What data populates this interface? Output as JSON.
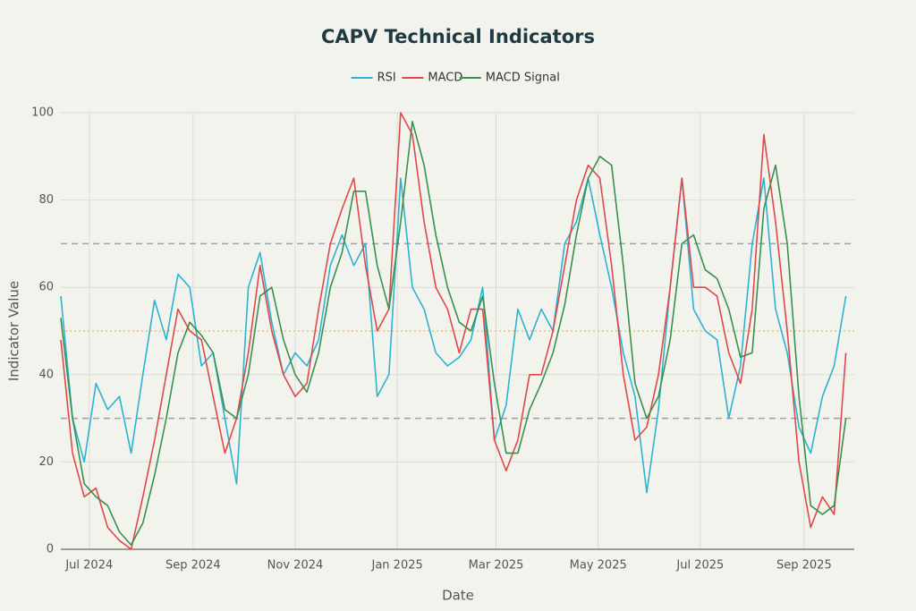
{
  "chart_data": {
    "type": "line",
    "title": "CAPV Technical Indicators",
    "xlabel": "Date",
    "ylabel": "Indicator Value",
    "x": [
      "2024-06-14",
      "2024-06-21",
      "2024-06-28",
      "2024-07-05",
      "2024-07-12",
      "2024-07-19",
      "2024-07-26",
      "2024-08-02",
      "2024-08-09",
      "2024-08-16",
      "2024-08-23",
      "2024-08-30",
      "2024-09-06",
      "2024-09-13",
      "2024-09-20",
      "2024-09-27",
      "2024-10-04",
      "2024-10-11",
      "2024-10-18",
      "2024-10-25",
      "2024-11-01",
      "2024-11-08",
      "2024-11-15",
      "2024-11-22",
      "2024-11-29",
      "2024-12-06",
      "2024-12-13",
      "2024-12-20",
      "2024-12-27",
      "2025-01-03",
      "2025-01-10",
      "2025-01-17",
      "2025-01-24",
      "2025-01-31",
      "2025-02-07",
      "2025-02-14",
      "2025-02-21",
      "2025-02-28",
      "2025-03-07",
      "2025-03-14",
      "2025-03-21",
      "2025-03-28",
      "2025-04-04",
      "2025-04-11",
      "2025-04-18",
      "2025-04-25",
      "2025-05-02",
      "2025-05-09",
      "2025-05-16",
      "2025-05-23",
      "2025-05-30",
      "2025-06-06",
      "2025-06-13",
      "2025-06-20",
      "2025-06-27",
      "2025-07-04",
      "2025-07-11",
      "2025-07-18",
      "2025-07-25",
      "2025-08-01",
      "2025-08-08",
      "2025-08-15",
      "2025-08-22",
      "2025-08-29",
      "2025-09-05",
      "2025-09-12",
      "2025-09-19",
      "2025-09-26"
    ],
    "series": [
      {
        "name": "RSI",
        "color": "#2bb3d1",
        "values": [
          58,
          30,
          20,
          38,
          32,
          35,
          22,
          40,
          57,
          48,
          63,
          60,
          42,
          45,
          30,
          15,
          60,
          68,
          52,
          40,
          45,
          42,
          48,
          65,
          72,
          65,
          70,
          35,
          40,
          85,
          60,
          55,
          45,
          42,
          44,
          48,
          60,
          25,
          33,
          55,
          48,
          55,
          50,
          70,
          75,
          85,
          72,
          60,
          45,
          35,
          13,
          32,
          60,
          85,
          55,
          50,
          48,
          30,
          42,
          70,
          85,
          55,
          45,
          28,
          22,
          35,
          42,
          58
        ]
      },
      {
        "name": "MACD",
        "color": "#e04848",
        "values": [
          48,
          22,
          12,
          14,
          5,
          2,
          0,
          12,
          25,
          40,
          55,
          50,
          48,
          35,
          22,
          30,
          45,
          65,
          50,
          40,
          35,
          38,
          55,
          70,
          78,
          85,
          65,
          50,
          55,
          100,
          95,
          75,
          60,
          55,
          45,
          55,
          55,
          25,
          18,
          25,
          40,
          40,
          50,
          65,
          80,
          88,
          85,
          65,
          40,
          25,
          28,
          40,
          60,
          85,
          60,
          60,
          58,
          45,
          38,
          55,
          95,
          75,
          50,
          20,
          5,
          12,
          8,
          45
        ]
      },
      {
        "name": "MACD Signal",
        "color": "#3a8f4f",
        "values": [
          53,
          30,
          15,
          12,
          10,
          4,
          1,
          6,
          17,
          30,
          45,
          52,
          49,
          45,
          32,
          30,
          40,
          58,
          60,
          48,
          40,
          36,
          45,
          60,
          68,
          82,
          82,
          65,
          55,
          75,
          98,
          88,
          72,
          60,
          52,
          50,
          58,
          38,
          22,
          22,
          32,
          38,
          45,
          56,
          72,
          85,
          90,
          88,
          65,
          38,
          30,
          35,
          48,
          70,
          72,
          64,
          62,
          55,
          44,
          45,
          78,
          88,
          70,
          35,
          10,
          8,
          10,
          30
        ]
      }
    ],
    "xlim": [
      "2024-06-14",
      "2025-10-01"
    ],
    "xticks": [
      {
        "value": "2024-07-01",
        "label": "Jul 2024"
      },
      {
        "value": "2024-09-01",
        "label": "Sep 2024"
      },
      {
        "value": "2024-11-01",
        "label": "Nov 2024"
      },
      {
        "value": "2025-01-01",
        "label": "Jan 2025"
      },
      {
        "value": "2025-03-01",
        "label": "Mar 2025"
      },
      {
        "value": "2025-05-01",
        "label": "May 2025"
      },
      {
        "value": "2025-07-01",
        "label": "Jul 2025"
      },
      {
        "value": "2025-09-01",
        "label": "Sep 2025"
      }
    ],
    "ylim": [
      0,
      100
    ],
    "yticks": [
      0,
      20,
      40,
      60,
      80,
      100
    ],
    "grid": true,
    "reference_lines": [
      {
        "value": 70,
        "color": "#9aa3a8"
      },
      {
        "value": 50,
        "color": "#e8c070"
      },
      {
        "value": 30,
        "color": "#9aa3a8"
      }
    ]
  }
}
